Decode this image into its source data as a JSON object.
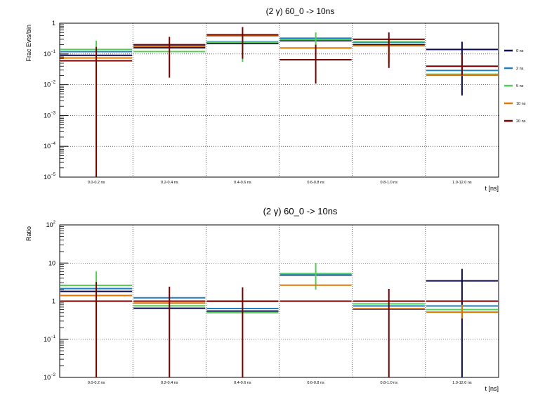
{
  "colors": {
    "0 ns": "#0a0a50",
    "2 ns": "#1f7fbf",
    "5 ns": "#55cc55",
    "10 ns": "#e07800",
    "20 ns": "#7a0000",
    "frame": "#000000",
    "grid": "#000000"
  },
  "legend": {
    "placement": "right",
    "entries": [
      "0 ns",
      "2 ns",
      "5 ns",
      "10 ns",
      "20 ns"
    ]
  },
  "chart_data": [
    {
      "type": "errorbar-histogram",
      "title": "(2 γ) 60_0 -> 10ns",
      "xlabel": "t [ns]",
      "ylabel": "Frac Evts/bin",
      "yscale": "log",
      "ylim": [
        1e-05,
        1
      ],
      "y_ticks": [
        {
          "value": 1,
          "base": "1",
          "exp": ""
        },
        {
          "value": 0.1,
          "base": "10",
          "exp": "−1"
        },
        {
          "value": 0.01,
          "base": "10",
          "exp": "−2"
        },
        {
          "value": 0.001,
          "base": "10",
          "exp": "−3"
        },
        {
          "value": 0.0001,
          "base": "10",
          "exp": "−4"
        },
        {
          "value": 1e-05,
          "base": "10",
          "exp": "−5"
        }
      ],
      "categories": [
        "0.0-0.2 ns",
        "0.2-0.4 ns",
        "0.4-0.6 ns",
        "0.6-0.8 ns",
        "0.8-1.0 ns",
        "1.0-12.0 ns"
      ],
      "grid": true,
      "series": [
        {
          "name": "0 ns",
          "values": [
            0.09,
            0.16,
            0.22,
            0.27,
            0.2,
            0.14
          ],
          "errors": [
            null,
            null,
            null,
            null,
            null,
            [
              0.0045,
              0.25
            ]
          ]
        },
        {
          "name": "2 ns",
          "values": [
            0.11,
            0.18,
            0.23,
            0.3,
            0.22,
            0.027
          ],
          "errors": [
            null,
            null,
            null,
            null,
            null,
            null
          ]
        },
        {
          "name": "5 ns",
          "values": [
            0.14,
            0.12,
            0.24,
            0.29,
            0.25,
            0.022
          ],
          "errors": [
            [
              1e-05,
              0.27
            ],
            null,
            [
              0.055,
              0.45
            ],
            [
              0.16,
              0.5
            ],
            null,
            null
          ]
        },
        {
          "name": "10 ns",
          "values": [
            0.08,
            0.19,
            0.42,
            0.17,
            0.2,
            0.022
          ],
          "errors": [
            null,
            null,
            null,
            null,
            [
              0.05,
              0.3
            ],
            null
          ]
        },
        {
          "name": "20 ns",
          "values": [
            0.06,
            0.2,
            0.42,
            0.065,
            0.3,
            0.04
          ],
          "errors": [
            [
              1e-05,
              0.17
            ],
            [
              0.017,
              0.36
            ],
            [
              0.07,
              0.75
            ],
            [
              0.011,
              0.2
            ],
            [
              0.035,
              0.5
            ],
            [
              0.02,
              0.1
            ]
          ]
        }
      ]
    },
    {
      "type": "errorbar-histogram",
      "title": "(2 γ) 60_0 -> 10ns",
      "xlabel": "t [ns]",
      "ylabel": "Ratio",
      "yscale": "log",
      "ylim": [
        0.01,
        100
      ],
      "y_ticks": [
        {
          "value": 100,
          "base": "10",
          "exp": "2"
        },
        {
          "value": 10,
          "base": "10",
          "exp": ""
        },
        {
          "value": 1,
          "base": "1",
          "exp": ""
        },
        {
          "value": 0.1,
          "base": "10",
          "exp": "−1"
        },
        {
          "value": 0.01,
          "base": "10",
          "exp": "−2"
        }
      ],
      "categories": [
        "0.0-0.2 ns",
        "0.2-0.4 ns",
        "0.4-0.6 ns",
        "0.6-0.8 ns",
        "0.8-1.0 ns",
        "1.0-12.0 ns"
      ],
      "grid": true,
      "series": [
        {
          "name": "0 ns",
          "values": [
            1.8,
            0.65,
            0.55,
            4.8,
            0.62,
            3.4
          ],
          "errors": [
            null,
            null,
            null,
            null,
            null,
            [
              0.01,
              7
            ]
          ]
        },
        {
          "name": "2 ns",
          "values": [
            2.0,
            1.15,
            0.6,
            4.6,
            0.7,
            0.7
          ],
          "errors": [
            null,
            null,
            null,
            null,
            null,
            null
          ]
        },
        {
          "name": "5 ns",
          "values": [
            2.6,
            0.75,
            0.5,
            5.3,
            0.85,
            0.6
          ],
          "errors": [
            [
              0.01,
              6
            ],
            null,
            null,
            [
              2.0,
              10
            ],
            null,
            null
          ]
        },
        {
          "name": "10 ns",
          "values": [
            1.5,
            0.95,
            1.05,
            2.8,
            0.68,
            0.55
          ],
          "errors": [
            null,
            null,
            null,
            null,
            null,
            [
              0.35,
              0.8
            ]
          ]
        },
        {
          "name": "20 ns",
          "values": [
            1.0,
            1.0,
            1.0,
            1.0,
            1.0,
            1.0
          ],
          "errors": [
            [
              0.01,
              3.2
            ],
            [
              0.01,
              2.4
            ],
            [
              0.01,
              2.3
            ],
            null,
            [
              0.01,
              2.1
            ],
            null
          ]
        }
      ]
    }
  ]
}
